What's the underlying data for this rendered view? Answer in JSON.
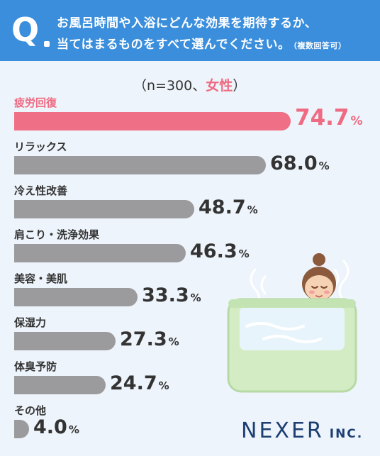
{
  "question": {
    "mark": "Q",
    "line1": "お風呂時間や入浴にどんな効果を期待するか、",
    "line2": "当てはまるものをすべて選んでください。",
    "note": "（複数回答可）"
  },
  "sample": {
    "prefix": "（n=300、",
    "group": "女性",
    "suffix": "）"
  },
  "chart_data": {
    "type": "bar",
    "orientation": "horizontal",
    "categories": [
      "疲労回復",
      "リラックス",
      "冷え性改善",
      "肩こり・洗浄効果",
      "美容・美肌",
      "保湿力",
      "体臭予防",
      "その他"
    ],
    "values": [
      74.7,
      68.0,
      48.7,
      46.3,
      33.3,
      27.3,
      24.7,
      4.0
    ],
    "value_labels": [
      "74.7",
      "68.0",
      "48.7",
      "46.3",
      "33.3",
      "27.3",
      "24.7",
      "4.0"
    ],
    "unit": "%",
    "highlight_index": 0,
    "xlim": [
      0,
      100
    ],
    "grid": false,
    "colors": {
      "highlight": "#ef6f86",
      "default": "#9b9b9d"
    }
  },
  "brand": {
    "name": "NEXER",
    "suffix": "INC."
  },
  "colors": {
    "header": "#3a8edc",
    "background": "#eef4fb",
    "logo": "#1c3f72"
  },
  "illustration": {
    "icon": "woman-in-bathtub-icon"
  }
}
